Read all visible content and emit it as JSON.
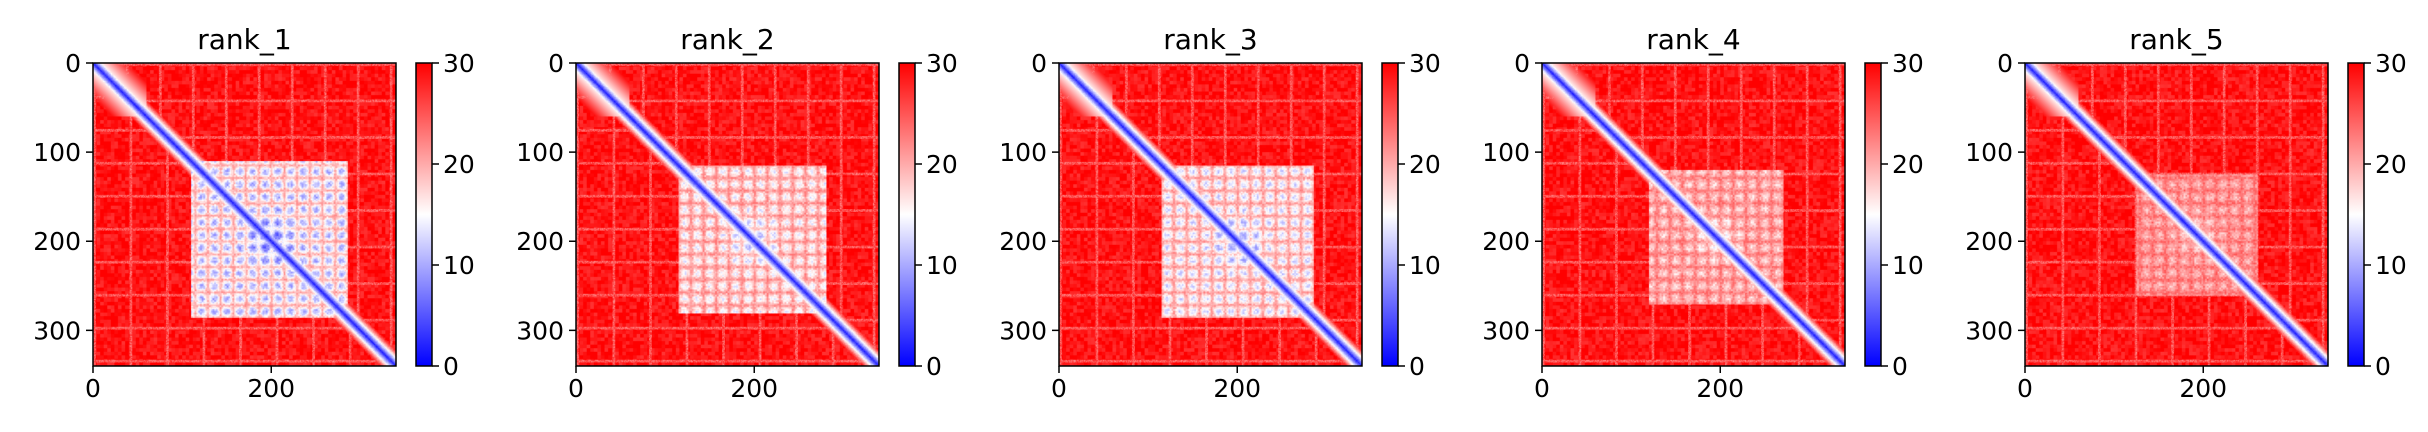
{
  "figure": {
    "background": "#ffffff"
  },
  "chart_data": [
    {
      "type": "heatmap",
      "title": "rank_1",
      "n": 340,
      "xticks": [
        0,
        200
      ],
      "yticks": [
        0,
        100,
        200,
        300
      ],
      "colorbar": {
        "min": 0,
        "max": 30,
        "ticks": [
          0,
          10,
          20,
          30
        ],
        "colors": [
          "#0000ff",
          "#ffffff",
          "#ff0000"
        ]
      },
      "block": {
        "start": 110,
        "end": 285,
        "strength": 1.0
      }
    },
    {
      "type": "heatmap",
      "title": "rank_2",
      "n": 340,
      "xticks": [
        0,
        200
      ],
      "yticks": [
        0,
        100,
        200,
        300
      ],
      "colorbar": {
        "min": 0,
        "max": 30,
        "ticks": [
          0,
          10,
          20,
          30
        ],
        "colors": [
          "#0000ff",
          "#ffffff",
          "#ff0000"
        ]
      },
      "block": {
        "start": 115,
        "end": 280,
        "strength": 0.75
      }
    },
    {
      "type": "heatmap",
      "title": "rank_3",
      "n": 340,
      "xticks": [
        0,
        200
      ],
      "yticks": [
        0,
        100,
        200,
        300
      ],
      "colorbar": {
        "min": 0,
        "max": 30,
        "ticks": [
          0,
          10,
          20,
          30
        ],
        "colors": [
          "#0000ff",
          "#ffffff",
          "#ff0000"
        ]
      },
      "block": {
        "start": 115,
        "end": 285,
        "strength": 0.85
      }
    },
    {
      "type": "heatmap",
      "title": "rank_4",
      "n": 340,
      "xticks": [
        0,
        200
      ],
      "yticks": [
        0,
        100,
        200,
        300
      ],
      "colorbar": {
        "min": 0,
        "max": 30,
        "ticks": [
          0,
          10,
          20,
          30
        ],
        "colors": [
          "#0000ff",
          "#ffffff",
          "#ff0000"
        ]
      },
      "block": {
        "start": 120,
        "end": 270,
        "strength": 0.55
      }
    },
    {
      "type": "heatmap",
      "title": "rank_5",
      "n": 340,
      "xticks": [
        0,
        200
      ],
      "yticks": [
        0,
        100,
        200,
        300
      ],
      "colorbar": {
        "min": 0,
        "max": 30,
        "ticks": [
          0,
          10,
          20,
          30
        ],
        "colors": [
          "#0000ff",
          "#ffffff",
          "#ff0000"
        ]
      },
      "block": {
        "start": 125,
        "end": 260,
        "strength": 0.45
      }
    }
  ]
}
